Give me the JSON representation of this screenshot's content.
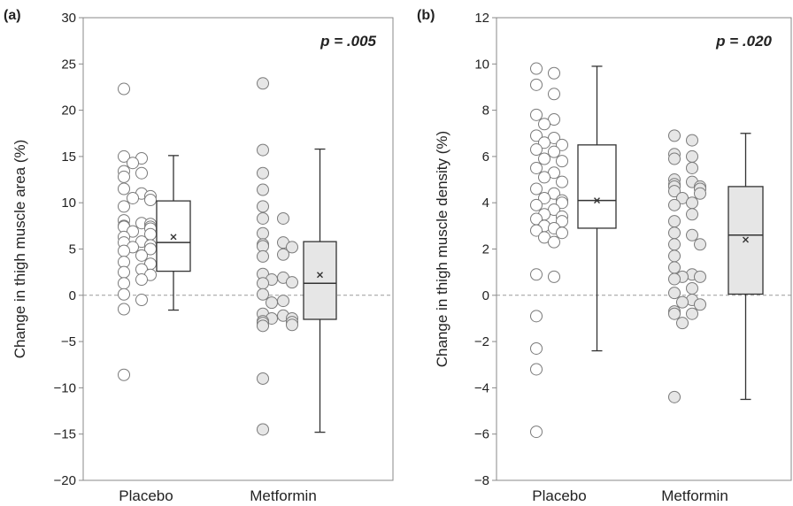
{
  "chart_data": [
    {
      "type": "box",
      "panel_label": "(a)",
      "ylabel": "Change in thigh muscle area (%)",
      "ylim": [
        -20,
        30
      ],
      "yticks": [
        -20,
        -15,
        -10,
        -5,
        0,
        5,
        10,
        15,
        20,
        25,
        30
      ],
      "categories": [
        "Placebo",
        "Metformin"
      ],
      "annotation": "p = .005",
      "reference_line": 0,
      "series": [
        {
          "category": "Placebo",
          "fill": "#ffffff",
          "points": [
            22.3,
            15.0,
            14.8,
            14.3,
            13.4,
            13.2,
            12.8,
            11.5,
            11.0,
            10.7,
            10.5,
            10.3,
            9.6,
            8.1,
            7.8,
            7.7,
            7.5,
            7.4,
            7.4,
            7.2,
            6.9,
            6.6,
            6.3,
            5.8,
            5.7,
            5.4,
            5.2,
            5.0,
            4.8,
            4.3,
            3.6,
            3.4,
            2.8,
            2.5,
            2.2,
            1.7,
            1.3,
            0.1,
            -0.5,
            -1.5,
            -8.6
          ],
          "box": {
            "min": -1.6,
            "q1": 2.6,
            "median": 5.7,
            "q3": 10.2,
            "max": 15.1,
            "mean": 6.3
          }
        },
        {
          "category": "Metformin",
          "fill": "#e6e6e6",
          "points": [
            22.9,
            15.7,
            13.2,
            11.4,
            9.6,
            8.3,
            8.3,
            6.7,
            5.7,
            5.5,
            5.3,
            5.2,
            4.4,
            4.2,
            2.3,
            1.9,
            1.7,
            1.4,
            1.3,
            0.1,
            -0.6,
            -0.8,
            -2.0,
            -2.2,
            -2.5,
            -2.5,
            -2.8,
            -2.9,
            -3.0,
            -3.2,
            -3.3,
            -9.0,
            -14.5
          ],
          "box": {
            "min": -14.8,
            "q1": -2.6,
            "median": 1.3,
            "q3": 5.8,
            "max": 15.8,
            "mean": 2.2
          }
        }
      ]
    },
    {
      "type": "box",
      "panel_label": "(b)",
      "ylabel": "Change in thigh muscle density (%)",
      "ylim": [
        -8,
        12
      ],
      "yticks": [
        -8,
        -6,
        -4,
        -2,
        0,
        2,
        4,
        6,
        8,
        10,
        12
      ],
      "categories": [
        "Placebo",
        "Metformin"
      ],
      "annotation": "p = .020",
      "reference_line": 0,
      "series": [
        {
          "category": "Placebo",
          "fill": "#ffffff",
          "points": [
            9.8,
            9.6,
            9.1,
            8.7,
            7.8,
            7.6,
            7.4,
            6.9,
            6.8,
            6.6,
            6.5,
            6.3,
            6.2,
            5.9,
            5.8,
            5.5,
            5.3,
            5.1,
            4.9,
            4.6,
            4.4,
            4.2,
            4.1,
            4.0,
            3.9,
            3.7,
            3.5,
            3.4,
            3.3,
            3.2,
            3.0,
            2.9,
            2.8,
            2.7,
            2.5,
            2.3,
            0.9,
            0.8,
            -0.9,
            -2.3,
            -3.2,
            -5.9
          ],
          "box": {
            "min": -2.4,
            "q1": 2.9,
            "median": 4.1,
            "q3": 6.5,
            "max": 9.9,
            "mean": 4.1
          }
        },
        {
          "category": "Metformin",
          "fill": "#e6e6e6",
          "points": [
            6.9,
            6.7,
            6.1,
            6.0,
            5.9,
            5.5,
            5.0,
            4.9,
            4.8,
            4.7,
            4.7,
            4.6,
            4.5,
            4.4,
            4.2,
            4.0,
            3.9,
            3.5,
            3.2,
            2.7,
            2.6,
            2.2,
            2.2,
            1.7,
            1.2,
            0.9,
            0.8,
            0.8,
            0.7,
            0.3,
            0.1,
            -0.2,
            -0.3,
            -0.4,
            -0.7,
            -0.8,
            -0.8,
            -1.2,
            -4.4
          ],
          "box": {
            "min": -4.5,
            "q1": 0.05,
            "median": 2.6,
            "q3": 4.7,
            "max": 7.0,
            "mean": 2.4
          }
        }
      ]
    }
  ]
}
